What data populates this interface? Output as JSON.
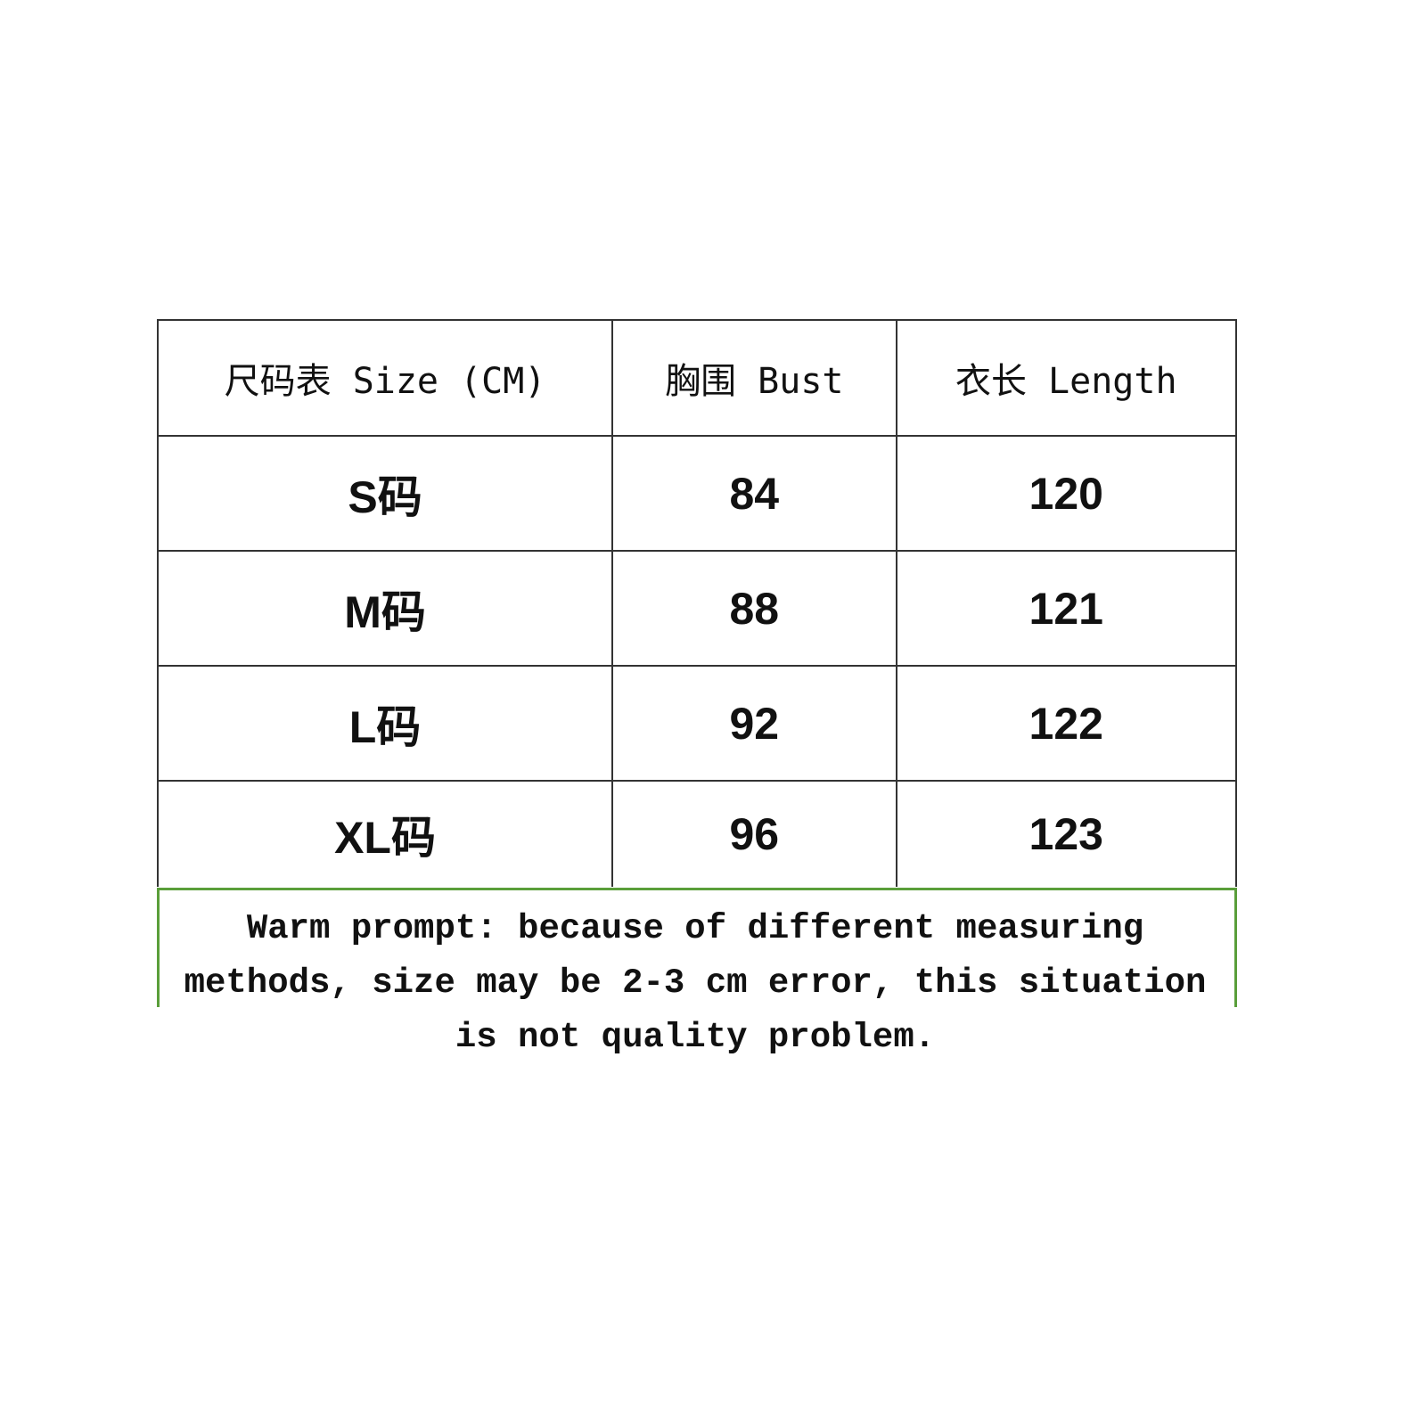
{
  "table": {
    "headers": [
      "尺码表 Size (CM)",
      "胸围 Bust",
      "衣长 Length"
    ],
    "rows": [
      [
        "S码",
        "84",
        "120"
      ],
      [
        "M码",
        "88",
        "121"
      ],
      [
        "L码",
        "92",
        "122"
      ],
      [
        "XL码",
        "96",
        "123"
      ]
    ]
  },
  "note": {
    "text": "Warm prompt: because of different measuring methods, size may be 2-3 cm error, this situation is not quality problem."
  },
  "colors": {
    "note_border": "#5a9e3a",
    "grid": "#333333"
  }
}
